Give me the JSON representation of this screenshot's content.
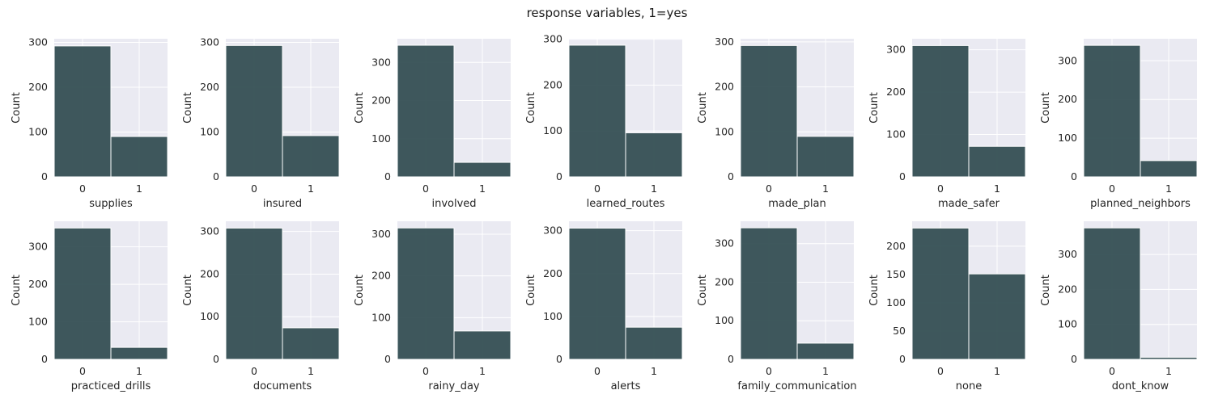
{
  "figure_title": "response variables, 1=yes",
  "colors": {
    "bar": "#2f4a4f",
    "panel_bg": "#eaeaf2",
    "grid": "#ffffff",
    "text": "#262626"
  },
  "chart_data": [
    {
      "type": "bar",
      "categories": [
        "0",
        "1"
      ],
      "values": [
        292,
        90
      ],
      "xlabel": "supplies",
      "ylabel": "Count",
      "ylim": [
        0,
        308
      ],
      "yticks": [
        0,
        100,
        200,
        300
      ],
      "grid": true
    },
    {
      "type": "bar",
      "categories": [
        "0",
        "1"
      ],
      "values": [
        293,
        92
      ],
      "xlabel": "insured",
      "ylabel": "Count",
      "ylim": [
        0,
        308
      ],
      "yticks": [
        0,
        100,
        200,
        300
      ],
      "grid": true
    },
    {
      "type": "bar",
      "categories": [
        "0",
        "1"
      ],
      "values": [
        345,
        38
      ],
      "xlabel": "involved",
      "ylabel": "Count",
      "ylim": [
        0,
        362
      ],
      "yticks": [
        0,
        100,
        200,
        300
      ],
      "grid": true
    },
    {
      "type": "bar",
      "categories": [
        "0",
        "1"
      ],
      "values": [
        287,
        96
      ],
      "xlabel": "learned_routes",
      "ylabel": "Count",
      "ylim": [
        0,
        301
      ],
      "yticks": [
        0,
        100,
        200,
        300
      ],
      "grid": true
    },
    {
      "type": "bar",
      "categories": [
        "0",
        "1"
      ],
      "values": [
        292,
        90
      ],
      "xlabel": "made_plan",
      "ylabel": "Count",
      "ylim": [
        0,
        307
      ],
      "yticks": [
        0,
        100,
        200,
        300
      ],
      "grid": true
    },
    {
      "type": "bar",
      "categories": [
        "0",
        "1"
      ],
      "values": [
        310,
        72
      ],
      "xlabel": "made_safer",
      "ylabel": "Count",
      "ylim": [
        0,
        326
      ],
      "yticks": [
        0,
        100,
        200,
        300
      ],
      "grid": true
    },
    {
      "type": "bar",
      "categories": [
        "0",
        "1"
      ],
      "values": [
        340,
        42
      ],
      "xlabel": "planned_neighbors",
      "ylabel": "Count",
      "ylim": [
        0,
        357
      ],
      "yticks": [
        0,
        100,
        200,
        300
      ],
      "grid": true
    },
    {
      "type": "bar",
      "categories": [
        "0",
        "1"
      ],
      "values": [
        350,
        32
      ],
      "xlabel": "practiced_drills",
      "ylabel": "Count",
      "ylim": [
        0,
        368
      ],
      "yticks": [
        0,
        100,
        200,
        300
      ],
      "grid": true
    },
    {
      "type": "bar",
      "categories": [
        "0",
        "1"
      ],
      "values": [
        308,
        74
      ],
      "xlabel": "documents",
      "ylabel": "Count",
      "ylim": [
        0,
        324
      ],
      "yticks": [
        0,
        100,
        200,
        300
      ],
      "grid": true
    },
    {
      "type": "bar",
      "categories": [
        "0",
        "1"
      ],
      "values": [
        315,
        68
      ],
      "xlabel": "rainy_day",
      "ylabel": "Count",
      "ylim": [
        0,
        331
      ],
      "yticks": [
        0,
        100,
        200,
        300
      ],
      "grid": true
    },
    {
      "type": "bar",
      "categories": [
        "0",
        "1"
      ],
      "values": [
        306,
        75
      ],
      "xlabel": "alerts",
      "ylabel": "Count",
      "ylim": [
        0,
        322
      ],
      "yticks": [
        0,
        100,
        200,
        300
      ],
      "grid": true
    },
    {
      "type": "bar",
      "categories": [
        "0",
        "1"
      ],
      "values": [
        341,
        42
      ],
      "xlabel": "family_communication",
      "ylabel": "Count",
      "ylim": [
        0,
        358
      ],
      "yticks": [
        0,
        100,
        200,
        300
      ],
      "grid": true
    },
    {
      "type": "bar",
      "categories": [
        "0",
        "1"
      ],
      "values": [
        232,
        151
      ],
      "xlabel": "none",
      "ylabel": "Count",
      "ylim": [
        0,
        244
      ],
      "yticks": [
        0,
        50,
        100,
        150,
        200
      ],
      "grid": true
    },
    {
      "type": "bar",
      "categories": [
        "0",
        "1"
      ],
      "values": [
        376,
        6
      ],
      "xlabel": "dont_know",
      "ylabel": "Count",
      "ylim": [
        0,
        395
      ],
      "yticks": [
        0,
        100,
        200,
        300
      ],
      "grid": true
    }
  ]
}
